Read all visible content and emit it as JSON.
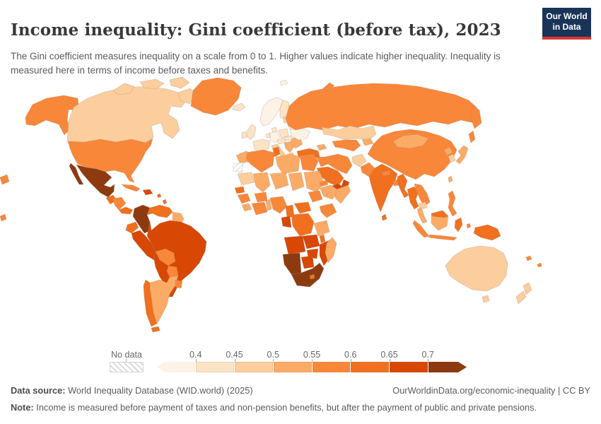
{
  "header": {
    "title": "Income inequality: Gini coefficient (before tax), 2023",
    "subtitle": "The Gini coefficient measures inequality on a scale from 0 to 1. Higher values indicate higher inequality. Inequality is measured here in terms of income before taxes and benefits."
  },
  "logo": {
    "line1": "Our World",
    "line2": "in Data",
    "bg_color": "#1a3458",
    "accent_color": "#dc3a30"
  },
  "legend": {
    "no_data_label": "No data",
    "tick_labels": [
      "0.4",
      "0.45",
      "0.5",
      "0.55",
      "0.6",
      "0.65",
      "0.7"
    ]
  },
  "footer": {
    "source_label": "Data source:",
    "source_text": " World Inequality Database (WID.world) (2025)",
    "citation": "OurWorldinData.org/economic-inequality | CC BY",
    "note_label": "Note:",
    "note_text": " Income is measured before payment of taxes and non-pension benefits, but after the payment of public and private pensions."
  },
  "chart_data": {
    "type": "heatmap",
    "subtype": "world-choropleth",
    "title": "Income inequality: Gini coefficient (before tax)",
    "year": "2023",
    "unit": "Gini coefficient (scale 0 to 1)",
    "legend_position": "bottom",
    "legend_bins": [
      {
        "range": "< 0.4",
        "color": "#fdf2e6"
      },
      {
        "range": "0.4–0.45",
        "color": "#fbe3c5"
      },
      {
        "range": "0.45–0.5",
        "color": "#fccd9d"
      },
      {
        "range": "0.5–0.55",
        "color": "#fcab66"
      },
      {
        "range": "0.55–0.6",
        "color": "#f9873a"
      },
      {
        "range": "0.6–0.65",
        "color": "#f0701f"
      },
      {
        "range": "0.65–0.7",
        "color": "#d84703"
      },
      {
        "range": "> 0.7",
        "color": "#8d3a11"
      }
    ],
    "no_data": {
      "label": "No data",
      "regions": [
        {
          "id": "western-sahara",
          "name": "Western Sahara"
        }
      ]
    },
    "countries": [
      {
        "id": "usa",
        "name": "United States",
        "bin": 4
      },
      {
        "id": "canada",
        "name": "Canada",
        "bin": 2
      },
      {
        "id": "greenland",
        "name": "Greenland",
        "bin": 4
      },
      {
        "id": "iceland",
        "name": "Iceland",
        "bin": 1
      },
      {
        "id": "mexico",
        "name": "Mexico",
        "bin": 7
      },
      {
        "id": "guatemala",
        "name": "Guatemala",
        "bin": 5
      },
      {
        "id": "honduras-nicaragua",
        "name": "Honduras/Nicaragua",
        "bin": 4
      },
      {
        "id": "costa-rica-panama",
        "name": "Costa Rica/Panama",
        "bin": 5
      },
      {
        "id": "cuba",
        "name": "Cuba",
        "bin": 4
      },
      {
        "id": "hispaniola",
        "name": "Dominican Republic/Haiti",
        "bin": 6
      },
      {
        "id": "lesser-antilles",
        "name": "Lesser Antilles",
        "bin": 5
      },
      {
        "id": "colombia",
        "name": "Colombia",
        "bin": 7
      },
      {
        "id": "venezuela",
        "name": "Venezuela",
        "bin": 5
      },
      {
        "id": "guyanas",
        "name": "Guyana/Suriname",
        "bin": 3
      },
      {
        "id": "ecuador",
        "name": "Ecuador",
        "bin": 5
      },
      {
        "id": "peru",
        "name": "Peru",
        "bin": 6
      },
      {
        "id": "brazil",
        "name": "Brazil",
        "bin": 6
      },
      {
        "id": "bolivia",
        "name": "Bolivia",
        "bin": 4
      },
      {
        "id": "paraguay",
        "name": "Paraguay",
        "bin": 4
      },
      {
        "id": "chile",
        "name": "Chile",
        "bin": 5
      },
      {
        "id": "argentina",
        "name": "Argentina",
        "bin": 3
      },
      {
        "id": "uruguay",
        "name": "Uruguay",
        "bin": 4
      },
      {
        "id": "tierra-del-fuego",
        "name": "Tierra del Fuego",
        "bin": 5
      },
      {
        "id": "norway-sweden",
        "name": "Norway/Sweden",
        "bin": 0
      },
      {
        "id": "denmark",
        "name": "Denmark",
        "bin": 1
      },
      {
        "id": "finland",
        "name": "Finland",
        "bin": 1
      },
      {
        "id": "uk",
        "name": "United Kingdom",
        "bin": 1
      },
      {
        "id": "ireland",
        "name": "Ireland",
        "bin": 1
      },
      {
        "id": "france",
        "name": "France",
        "bin": 1
      },
      {
        "id": "spain",
        "name": "Spain",
        "bin": 1
      },
      {
        "id": "portugal",
        "name": "Portugal",
        "bin": 2
      },
      {
        "id": "germany",
        "name": "Germany",
        "bin": 0
      },
      {
        "id": "benelux",
        "name": "Benelux",
        "bin": 1
      },
      {
        "id": "poland",
        "name": "Poland",
        "bin": 1
      },
      {
        "id": "czech-austria",
        "name": "Czechia/Austria",
        "bin": 1
      },
      {
        "id": "italy",
        "name": "Italy",
        "bin": 2
      },
      {
        "id": "balkans",
        "name": "Western Balkans",
        "bin": 3
      },
      {
        "id": "greece",
        "name": "Greece",
        "bin": 2
      },
      {
        "id": "romania-bulgaria",
        "name": "Romania/Bulgaria",
        "bin": 3
      },
      {
        "id": "hungary-slovakia",
        "name": "Hungary/Slovakia",
        "bin": 1
      },
      {
        "id": "ukraine",
        "name": "Ukraine",
        "bin": 0
      },
      {
        "id": "belarus",
        "name": "Belarus",
        "bin": 1
      },
      {
        "id": "baltics",
        "name": "Baltic states",
        "bin": 2
      },
      {
        "id": "russia",
        "name": "Russia",
        "bin": 4
      },
      {
        "id": "turkey",
        "name": "Turkey",
        "bin": 5
      },
      {
        "id": "caucasus",
        "name": "Caucasus",
        "bin": 3
      },
      {
        "id": "kazakhstan",
        "name": "Kazakhstan",
        "bin": 2
      },
      {
        "id": "uzbekistan-turkmenistan",
        "name": "Uzbekistan/Turkmenistan",
        "bin": 4
      },
      {
        "id": "kyrgyzstan-tajikistan",
        "name": "Kyrgyzstan/Tajikistan",
        "bin": 3
      },
      {
        "id": "iran",
        "name": "Iran",
        "bin": 4
      },
      {
        "id": "iraq",
        "name": "Iraq",
        "bin": 4
      },
      {
        "id": "syria-jordan",
        "name": "Syria/Jordan",
        "bin": 5
      },
      {
        "id": "saudi-arabia",
        "name": "Saudi Arabia",
        "bin": 5
      },
      {
        "id": "yemen",
        "name": "Yemen",
        "bin": 6
      },
      {
        "id": "oman",
        "name": "Oman",
        "bin": 6
      },
      {
        "id": "afghanistan",
        "name": "Afghanistan",
        "bin": 2
      },
      {
        "id": "pakistan",
        "name": "Pakistan",
        "bin": 4
      },
      {
        "id": "india",
        "name": "India",
        "bin": 5
      },
      {
        "id": "nepal",
        "name": "Nepal",
        "bin": 4
      },
      {
        "id": "bangladesh",
        "name": "Bangladesh",
        "bin": 4
      },
      {
        "id": "sri-lanka",
        "name": "Sri Lanka",
        "bin": 5
      },
      {
        "id": "myanmar",
        "name": "Myanmar",
        "bin": 5
      },
      {
        "id": "thailand",
        "name": "Thailand",
        "bin": 5
      },
      {
        "id": "laos-vietnam",
        "name": "Laos/Vietnam",
        "bin": 4
      },
      {
        "id": "cambodia",
        "name": "Cambodia",
        "bin": 2
      },
      {
        "id": "malaysia-peninsula",
        "name": "Malaysia (peninsula)",
        "bin": 3
      },
      {
        "id": "sumatra",
        "name": "Indonesia (Sumatra)",
        "bin": 4
      },
      {
        "id": "borneo",
        "name": "Borneo",
        "bin": 3
      },
      {
        "id": "borneo-malaysia",
        "name": "Malaysia (Borneo)",
        "bin": 5
      },
      {
        "id": "java",
        "name": "Indonesia (Java)",
        "bin": 4
      },
      {
        "id": "sulawesi",
        "name": "Indonesia (Sulawesi)",
        "bin": 5
      },
      {
        "id": "maluku",
        "name": "Indonesia (Maluku)",
        "bin": 4
      },
      {
        "id": "philippines",
        "name": "Philippines",
        "bin": 4
      },
      {
        "id": "taiwan",
        "name": "Taiwan",
        "bin": 3
      },
      {
        "id": "new-guinea",
        "name": "Papua New Guinea",
        "bin": 5
      },
      {
        "id": "pacific-islands",
        "name": "Pacific islands",
        "bin": 4
      },
      {
        "id": "china",
        "name": "China",
        "bin": 4
      },
      {
        "id": "mongolia",
        "name": "Mongolia",
        "bin": 3
      },
      {
        "id": "north-korea",
        "name": "North Korea",
        "bin": 3
      },
      {
        "id": "south-korea",
        "name": "South Korea",
        "bin": 2
      },
      {
        "id": "japan",
        "name": "Japan",
        "bin": 3
      },
      {
        "id": "morocco",
        "name": "Morocco",
        "bin": 3
      },
      {
        "id": "algeria",
        "name": "Algeria",
        "bin": 4
      },
      {
        "id": "tunisia",
        "name": "Tunisia",
        "bin": 5
      },
      {
        "id": "libya",
        "name": "Libya",
        "bin": 3
      },
      {
        "id": "egypt",
        "name": "Egypt",
        "bin": 4
      },
      {
        "id": "mauritania",
        "name": "Mauritania",
        "bin": 2
      },
      {
        "id": "mali",
        "name": "Mali",
        "bin": 3
      },
      {
        "id": "niger",
        "name": "Niger",
        "bin": 3
      },
      {
        "id": "chad",
        "name": "Chad",
        "bin": 3
      },
      {
        "id": "sudan",
        "name": "Sudan",
        "bin": 3
      },
      {
        "id": "eritrea",
        "name": "Eritrea",
        "bin": 4
      },
      {
        "id": "ethiopia",
        "name": "Ethiopia",
        "bin": 3
      },
      {
        "id": "somalia",
        "name": "Somalia",
        "bin": 3
      },
      {
        "id": "senegal",
        "name": "Senegal",
        "bin": 5
      },
      {
        "id": "guinea",
        "name": "Guinea",
        "bin": 4
      },
      {
        "id": "sierra-leone-liberia",
        "name": "Sierra Leone/Liberia",
        "bin": 3
      },
      {
        "id": "cote-divoire-ghana",
        "name": "Côte d'Ivoire/Ghana",
        "bin": 4
      },
      {
        "id": "burkina-faso",
        "name": "Burkina Faso",
        "bin": 4
      },
      {
        "id": "nigeria",
        "name": "Nigeria",
        "bin": 4
      },
      {
        "id": "benin-togo",
        "name": "Benin/Togo",
        "bin": 3
      },
      {
        "id": "cameroon",
        "name": "Cameroon",
        "bin": 5
      },
      {
        "id": "central-african-republic",
        "name": "Central African Republic",
        "bin": 5
      },
      {
        "id": "south-sudan",
        "name": "South Sudan",
        "bin": 4
      },
      {
        "id": "uganda-kenya",
        "name": "Uganda/Kenya",
        "bin": 4
      },
      {
        "id": "gabon-congo",
        "name": "Gabon/Congo",
        "bin": 6
      },
      {
        "id": "drc",
        "name": "Democratic Republic of Congo",
        "bin": 5
      },
      {
        "id": "tanzania",
        "name": "Tanzania",
        "bin": 3
      },
      {
        "id": "angola",
        "name": "Angola",
        "bin": 6
      },
      {
        "id": "zambia",
        "name": "Zambia",
        "bin": 6
      },
      {
        "id": "malawi",
        "name": "Malawi",
        "bin": 5
      },
      {
        "id": "mozambique",
        "name": "Mozambique",
        "bin": 6
      },
      {
        "id": "zimbabwe",
        "name": "Zimbabwe",
        "bin": 6
      },
      {
        "id": "botswana",
        "name": "Botswana",
        "bin": 6
      },
      {
        "id": "namibia",
        "name": "Namibia",
        "bin": 7
      },
      {
        "id": "south-africa",
        "name": "South Africa",
        "bin": 7
      },
      {
        "id": "lesotho",
        "name": "Lesotho",
        "bin": 5
      },
      {
        "id": "madagascar",
        "name": "Madagascar",
        "bin": 3
      },
      {
        "id": "australia",
        "name": "Australia",
        "bin": 2
      },
      {
        "id": "new-zealand",
        "name": "New Zealand",
        "bin": 2
      }
    ]
  }
}
